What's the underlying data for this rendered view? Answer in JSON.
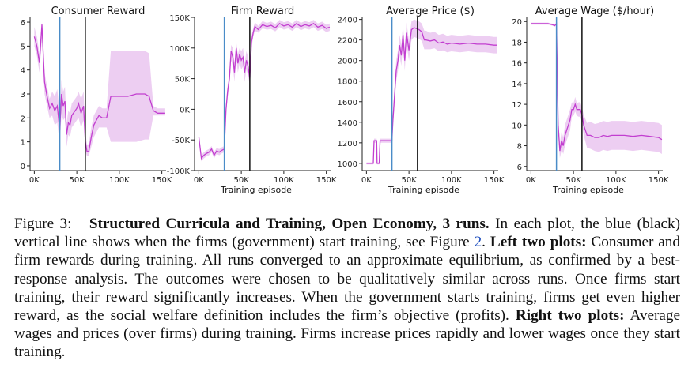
{
  "chart_data": [
    {
      "type": "line",
      "title": "Consumer Reward",
      "xlabel": "",
      "ylabel": "",
      "xlim": [
        -5000,
        155000
      ],
      "ylim": [
        -0.2,
        6.2
      ],
      "xticks": [
        0,
        50000,
        100000,
        150000
      ],
      "xtick_labels": [
        "0K",
        "50K",
        "100K",
        "150K"
      ],
      "yticks": [
        0,
        1,
        2,
        3,
        4,
        5,
        6
      ],
      "ytick_labels": [
        "0",
        "1",
        "2",
        "3",
        "4",
        "5",
        "6"
      ],
      "blue_line_x": 30000,
      "black_line_x": 60000,
      "series": [
        {
          "x": [
            0,
            3000,
            6000,
            9000,
            12000,
            15000,
            18000,
            21000,
            24000,
            27000,
            30000,
            32000,
            34000,
            36000,
            38000,
            40000,
            42000,
            44000,
            46000,
            48000,
            50000,
            52000,
            55000,
            58000,
            60000,
            62000,
            64000,
            67000,
            70000,
            73000,
            76000,
            80000,
            85000,
            90000,
            95000,
            100000,
            110000,
            120000,
            130000,
            135000,
            140000,
            145000,
            150000,
            154000
          ],
          "y": [
            5.4,
            5.0,
            4.3,
            5.9,
            3.5,
            2.9,
            2.4,
            2.6,
            2.3,
            2.5,
            1.5,
            3.0,
            2.5,
            2.7,
            1.3,
            1.8,
            1.7,
            2.1,
            2.2,
            2.3,
            2.4,
            2.6,
            2.2,
            2.5,
            1.0,
            0.6,
            0.6,
            1.2,
            1.7,
            1.9,
            2.1,
            2.0,
            2.0,
            2.9,
            2.9,
            2.9,
            2.9,
            3.0,
            3.0,
            2.9,
            2.3,
            2.2,
            2.2,
            2.2
          ],
          "band_low": [
            5.0,
            4.6,
            3.9,
            5.3,
            3.0,
            2.5,
            2.0,
            2.1,
            1.7,
            1.8,
            0.9,
            2.2,
            1.9,
            2.0,
            0.8,
            1.3,
            1.2,
            1.6,
            1.7,
            1.8,
            1.9,
            2.0,
            1.6,
            1.9,
            0.6,
            0.4,
            0.4,
            0.8,
            1.2,
            1.4,
            1.6,
            1.6,
            1.6,
            1.0,
            1.0,
            1.0,
            1.0,
            1.0,
            1.1,
            1.1,
            2.1,
            2.1,
            2.1,
            2.1
          ],
          "band_high": [
            5.8,
            5.4,
            4.7,
            6.0,
            3.9,
            3.3,
            2.8,
            3.1,
            2.9,
            3.2,
            2.1,
            3.6,
            3.1,
            3.3,
            1.8,
            2.3,
            2.2,
            2.6,
            2.7,
            2.8,
            2.9,
            3.1,
            2.8,
            3.1,
            1.4,
            0.9,
            0.9,
            1.6,
            2.1,
            2.3,
            2.5,
            2.4,
            2.4,
            4.8,
            4.8,
            4.8,
            4.8,
            4.8,
            4.8,
            4.7,
            2.5,
            2.4,
            2.4,
            2.4
          ]
        }
      ]
    },
    {
      "type": "line",
      "title": "Firm Reward",
      "xlabel": "Training episode",
      "ylabel": "",
      "xlim": [
        -5000,
        155000
      ],
      "ylim": [
        -100000,
        150000
      ],
      "xticks": [
        0,
        50000,
        100000,
        150000
      ],
      "xtick_labels": [
        "0K",
        "50K",
        "100K",
        "150K"
      ],
      "yticks": [
        -100000,
        -50000,
        0,
        50000,
        100000,
        150000
      ],
      "ytick_labels": [
        "-100K",
        "-50K",
        "0K",
        "50K",
        "100K",
        "150K"
      ],
      "blue_line_x": 30000,
      "black_line_x": 60000,
      "series": [
        {
          "x": [
            0,
            3000,
            6000,
            9000,
            12000,
            15000,
            18000,
            21000,
            24000,
            27000,
            30000,
            32000,
            34000,
            36000,
            38000,
            40000,
            42000,
            44000,
            46000,
            48000,
            50000,
            52000,
            54000,
            56000,
            58000,
            60000,
            62000,
            64000,
            66000,
            70000,
            75000,
            80000,
            85000,
            90000,
            95000,
            100000,
            105000,
            110000,
            115000,
            120000,
            125000,
            130000,
            135000,
            140000,
            145000,
            150000,
            154000
          ],
          "y": [
            -45000,
            -80000,
            -75000,
            -72000,
            -70000,
            -65000,
            -75000,
            -68000,
            -70000,
            -67000,
            -65000,
            0,
            30000,
            50000,
            95000,
            85000,
            60000,
            100000,
            75000,
            90000,
            80000,
            85000,
            60000,
            80000,
            70000,
            50000,
            110000,
            125000,
            135000,
            130000,
            138000,
            135000,
            137000,
            133000,
            140000,
            136000,
            138000,
            134000,
            140000,
            135000,
            138000,
            136000,
            140000,
            134000,
            137000,
            132000,
            134000
          ],
          "band_low": [
            -50000,
            -85000,
            -80000,
            -77000,
            -75000,
            -70000,
            -80000,
            -73000,
            -75000,
            -72000,
            -70000,
            -10000,
            20000,
            40000,
            80000,
            70000,
            45000,
            85000,
            60000,
            75000,
            65000,
            70000,
            45000,
            65000,
            55000,
            40000,
            100000,
            118000,
            128000,
            125000,
            132000,
            130000,
            131000,
            127000,
            134000,
            130000,
            132000,
            128000,
            134000,
            129000,
            132000,
            130000,
            134000,
            128000,
            131000,
            126000,
            128000
          ],
          "band_high": [
            -40000,
            -75000,
            -70000,
            -67000,
            -65000,
            -60000,
            -70000,
            -63000,
            -65000,
            -62000,
            -60000,
            10000,
            40000,
            60000,
            105000,
            100000,
            75000,
            110000,
            90000,
            100000,
            95000,
            100000,
            75000,
            95000,
            85000,
            60000,
            120000,
            132000,
            142000,
            136000,
            144000,
            141000,
            143000,
            139000,
            146000,
            142000,
            144000,
            140000,
            146000,
            141000,
            144000,
            142000,
            146000,
            140000,
            143000,
            138000,
            140000
          ]
        }
      ]
    },
    {
      "type": "line",
      "title": "Average Price ($)",
      "xlabel": "Training episode",
      "ylabel": "",
      "xlim": [
        -5000,
        155000
      ],
      "ylim": [
        930,
        2420
      ],
      "xticks": [
        0,
        50000,
        100000,
        150000
      ],
      "xtick_labels": [
        "0K",
        "50K",
        "100K",
        "150K"
      ],
      "yticks": [
        1000,
        1200,
        1400,
        1600,
        1800,
        2000,
        2200,
        2400
      ],
      "ytick_labels": [
        "1000",
        "1200",
        "1400",
        "1600",
        "1800",
        "2000",
        "2200",
        "2400"
      ],
      "blue_line_x": 30000,
      "black_line_x": 60000,
      "series": [
        {
          "x": [
            0,
            5000,
            8000,
            9000,
            12000,
            12500,
            15000,
            16000,
            20000,
            23000,
            25000,
            27000,
            29000,
            30000,
            31000,
            33000,
            35000,
            37000,
            39000,
            41000,
            43000,
            45000,
            47000,
            50000,
            53000,
            56000,
            59000,
            62000,
            65000,
            68000,
            70000,
            75000,
            80000,
            85000,
            90000,
            95000,
            100000,
            110000,
            120000,
            130000,
            140000,
            150000,
            154000
          ],
          "y": [
            1000,
            1000,
            1000,
            1220,
            1220,
            1000,
            1000,
            1220,
            1220,
            1220,
            1220,
            1220,
            1220,
            1220,
            1400,
            1650,
            1900,
            2000,
            2150,
            2050,
            2250,
            2000,
            2270,
            2100,
            2300,
            2320,
            2310,
            2300,
            2280,
            2200,
            2200,
            2190,
            2200,
            2170,
            2180,
            2160,
            2170,
            2160,
            2170,
            2160,
            2160,
            2150,
            2150
          ],
          "band_low": [
            990,
            990,
            990,
            1200,
            1200,
            990,
            990,
            1200,
            1200,
            1200,
            1200,
            1200,
            1200,
            1200,
            1340,
            1560,
            1800,
            1900,
            2050,
            1950,
            2150,
            1900,
            2170,
            2000,
            2200,
            2230,
            2220,
            2210,
            2190,
            2110,
            2110,
            2110,
            2120,
            2090,
            2100,
            2080,
            2090,
            2080,
            2090,
            2080,
            2080,
            2070,
            2070
          ],
          "band_high": [
            1010,
            1010,
            1010,
            1240,
            1240,
            1010,
            1010,
            1240,
            1240,
            1240,
            1240,
            1240,
            1240,
            1240,
            1460,
            1740,
            2000,
            2100,
            2250,
            2150,
            2350,
            2100,
            2370,
            2200,
            2380,
            2400,
            2390,
            2380,
            2360,
            2290,
            2290,
            2270,
            2280,
            2250,
            2260,
            2240,
            2250,
            2240,
            2250,
            2240,
            2240,
            2230,
            2230
          ]
        }
      ]
    },
    {
      "type": "line",
      "title": "Average Wage ($/hour)",
      "xlabel": "Training episode",
      "ylabel": "",
      "xlim": [
        -5000,
        155000
      ],
      "ylim": [
        5.6,
        20.4
      ],
      "xticks": [
        0,
        50000,
        100000,
        150000
      ],
      "xtick_labels": [
        "0K",
        "50K",
        "100K",
        "150K"
      ],
      "yticks": [
        6,
        8,
        10,
        12,
        14,
        16,
        18,
        20
      ],
      "ytick_labels": [
        "6",
        "8",
        "10",
        "12",
        "14",
        "16",
        "18",
        "20"
      ],
      "blue_line_x": 30000,
      "black_line_x": 60000,
      "series": [
        {
          "x": [
            0,
            10000,
            20000,
            25000,
            28000,
            30000,
            32000,
            34000,
            36000,
            38000,
            40000,
            42000,
            44000,
            46000,
            48000,
            50000,
            52000,
            54000,
            56000,
            58000,
            60000,
            62000,
            64000,
            66000,
            70000,
            75000,
            80000,
            85000,
            90000,
            95000,
            100000,
            110000,
            120000,
            130000,
            140000,
            150000,
            154000
          ],
          "y": [
            19.8,
            19.8,
            19.8,
            19.7,
            19.6,
            19.8,
            10.0,
            7.5,
            8.5,
            8.0,
            9.0,
            9.5,
            10.0,
            10.5,
            11.5,
            11.5,
            12.0,
            11.5,
            11.5,
            11.5,
            11.0,
            10.0,
            9.5,
            9.0,
            9.0,
            8.8,
            8.8,
            9.0,
            8.9,
            9.0,
            9.0,
            9.0,
            8.9,
            9.0,
            8.9,
            8.8,
            8.6
          ],
          "band_low": [
            19.7,
            19.7,
            19.7,
            19.6,
            19.5,
            19.7,
            9.0,
            6.8,
            7.6,
            7.2,
            8.0,
            8.5,
            9.0,
            9.5,
            10.8,
            10.9,
            11.3,
            10.9,
            10.8,
            10.8,
            10.3,
            9.0,
            8.4,
            7.8,
            7.7,
            7.5,
            7.4,
            7.6,
            7.5,
            7.6,
            7.6,
            7.6,
            7.5,
            7.6,
            7.5,
            7.4,
            7.2
          ],
          "band_high": [
            19.9,
            19.9,
            19.9,
            19.8,
            19.7,
            19.9,
            11.0,
            8.2,
            9.4,
            8.8,
            10.0,
            10.5,
            11.0,
            11.5,
            12.2,
            12.1,
            12.7,
            12.1,
            12.2,
            12.2,
            11.7,
            11.0,
            10.6,
            10.2,
            10.3,
            10.1,
            10.2,
            10.4,
            10.3,
            10.4,
            10.4,
            10.4,
            10.3,
            10.4,
            10.3,
            10.2,
            10.0
          ]
        }
      ]
    }
  ],
  "caption": {
    "figure_label": "Figure 3:",
    "title": "Structured Curricula and Training, Open Economy, 3 runs.",
    "text_1": " In each plot, the blue (black) vertical line shows when the firms (government) start training, see Figure ",
    "ref": "2",
    "text_2": ". ",
    "bold_left": "Left two plots:",
    "text_3": " Consumer and firm rewards during training. All runs converged to an approximate equilibrium, as confirmed by a best-response analysis. The outcomes were chosen to be qualitatively similar across runs. Once firms start training, their reward significantly increases. When the government starts training, firms get even higher reward, as the social welfare definition includes the firm’s objective (profits). ",
    "bold_right": "Right two plots:",
    "text_4": " Average wages and prices (over firms) during training. Firms increase prices rapidly and lower wages once they start training."
  },
  "colors": {
    "line": "#c23ed0",
    "band": "#e8c2ef",
    "blue_line": "#4a8cc8",
    "black_line": "#111111",
    "axis": "#222222"
  }
}
